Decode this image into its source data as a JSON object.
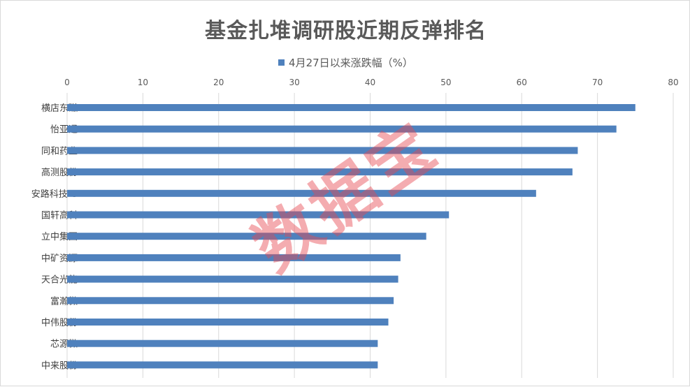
{
  "chart_data": {
    "type": "bar",
    "orientation": "horizontal",
    "title": "基金扎堆调研股近期反弹排名",
    "categories": [
      "横店东磁",
      "怡亚通",
      "同和药业",
      "高测股份",
      "安路科技-U",
      "国轩高科",
      "立中集团",
      "中矿资源",
      "天合光能",
      "富瀚微",
      "中伟股份",
      "芯源微",
      "中来股份"
    ],
    "series": [
      {
        "name": "4月27日以来涨跌幅（%）",
        "values": [
          75.0,
          72.5,
          67.4,
          66.7,
          61.9,
          50.4,
          47.4,
          44.0,
          43.7,
          43.1,
          42.4,
          41.0,
          41.0
        ]
      }
    ],
    "xlim": [
      0,
      80
    ],
    "xticks": [
      "0",
      "10",
      "20",
      "30",
      "40",
      "50",
      "60",
      "70",
      "80"
    ],
    "xaxis_position": "top",
    "grid": true,
    "legend_position": "top",
    "bar_color": "#4f81bd"
  },
  "watermark": "数据宝"
}
